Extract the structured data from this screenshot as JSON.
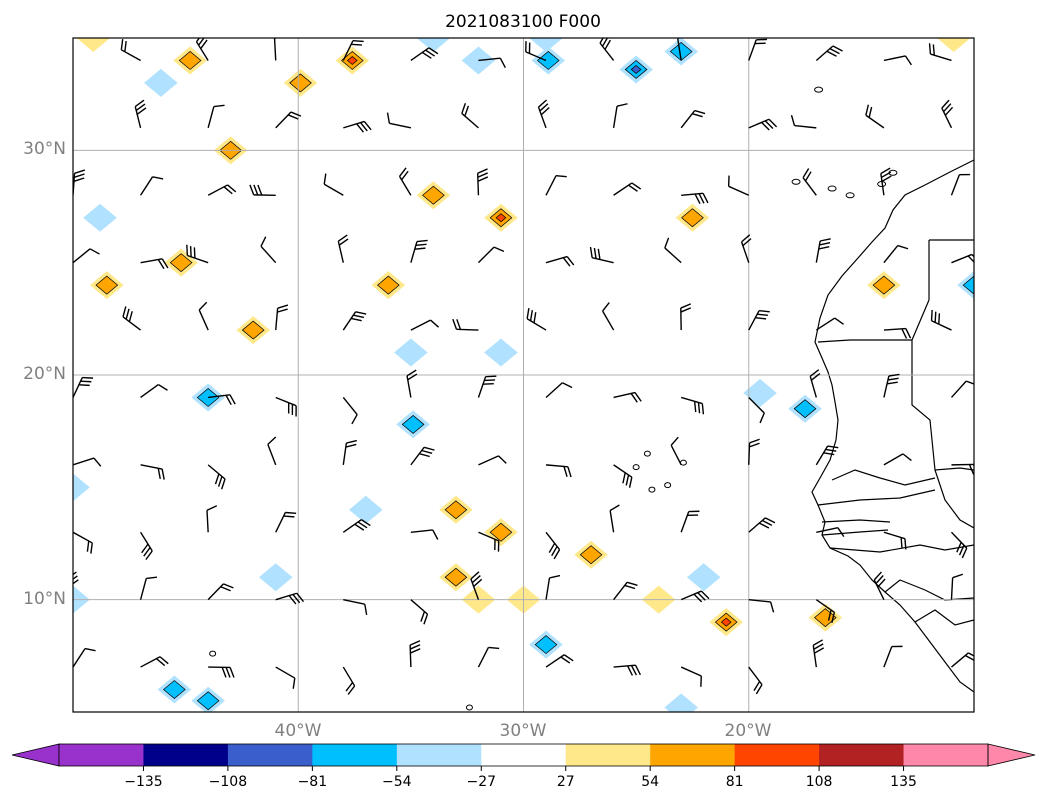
{
  "title": "2021083100 F000",
  "latitude_labels": [
    "30°N",
    "20°N",
    "10°N"
  ],
  "longitude_labels": [
    "40°W",
    "30°W",
    "20°W"
  ],
  "map_extent": {
    "lon_min": -50,
    "lon_max": -10,
    "lat_min": 5,
    "lat_max": 35
  },
  "gridlines": {
    "lat": [
      30,
      20,
      10
    ],
    "lon": [
      -40,
      -30,
      -20
    ],
    "color": "#b0b0b0"
  },
  "colorbar": {
    "ticks": [
      "−135",
      "−108",
      "−81",
      "−54",
      "−27",
      "27",
      "54",
      "81",
      "108",
      "135"
    ],
    "levels": [
      -135,
      -108,
      -81,
      -54,
      -27,
      27,
      54,
      81,
      108,
      135
    ],
    "colors": [
      "#9932cc",
      "#00008b",
      "#3a5fcd",
      "#00bfff",
      "#b0e2ff",
      "#ffffff",
      "#ffe88a",
      "#ffa500",
      "#ff4500",
      "#b22222",
      "#ff88aa"
    ],
    "extend": "both"
  },
  "colors": {
    "pos_light": "#ffe88a",
    "pos_mid": "#ffa500",
    "pos_strong": "#ff4500",
    "neg_light": "#b0e2ff",
    "neg_mid": "#00bfff",
    "neg_strong": "#3a5fcd",
    "neg_extreme": "#9932cc"
  },
  "anomaly_blobs": [
    {
      "lon": -49.1,
      "lat": 35.0,
      "level": 1
    },
    {
      "lon": -44.8,
      "lat": 34.0,
      "level": 2
    },
    {
      "lon": -39.9,
      "lat": 33.0,
      "level": 2
    },
    {
      "lon": -37.6,
      "lat": 34.0,
      "level": 3
    },
    {
      "lon": -43.0,
      "lat": 30.0,
      "level": 2
    },
    {
      "lon": -34.0,
      "lat": 28.0,
      "level": 2
    },
    {
      "lon": -31.0,
      "lat": 27.0,
      "level": 3
    },
    {
      "lon": -45.2,
      "lat": 25.0,
      "level": 2
    },
    {
      "lon": -48.5,
      "lat": 24.0,
      "level": 2
    },
    {
      "lon": -42.0,
      "lat": 22.0,
      "level": 2
    },
    {
      "lon": -36.0,
      "lat": 24.0,
      "level": 2
    },
    {
      "lon": -22.5,
      "lat": 27.0,
      "level": 2
    },
    {
      "lon": -14.0,
      "lat": 24.0,
      "level": 2
    },
    {
      "lon": -33.0,
      "lat": 14.0,
      "level": 2
    },
    {
      "lon": -31.0,
      "lat": 13.0,
      "level": 2
    },
    {
      "lon": -27.0,
      "lat": 12.0,
      "level": 2
    },
    {
      "lon": -33.0,
      "lat": 11.0,
      "level": 2
    },
    {
      "lon": -32.0,
      "lat": 10.0,
      "level": 1
    },
    {
      "lon": -30.0,
      "lat": 10.0,
      "level": 1
    },
    {
      "lon": -24.0,
      "lat": 10.0,
      "level": 1
    },
    {
      "lon": -21.0,
      "lat": 9.0,
      "level": 3
    },
    {
      "lon": -16.6,
      "lat": 9.2,
      "level": 2
    },
    {
      "lon": -10.9,
      "lat": 35.0,
      "level": 1
    },
    {
      "lon": -46.1,
      "lat": 33.0,
      "level": -1
    },
    {
      "lon": -29.0,
      "lat": 35.0,
      "level": -1
    },
    {
      "lon": -32.0,
      "lat": 34.0,
      "level": -1
    },
    {
      "lon": -34.0,
      "lat": 35.0,
      "level": -1
    },
    {
      "lon": -28.9,
      "lat": 34.0,
      "level": -2
    },
    {
      "lon": -25.0,
      "lat": 33.6,
      "level": -3
    },
    {
      "lon": -23.0,
      "lat": 34.4,
      "level": -2
    },
    {
      "lon": -48.8,
      "lat": 27.0,
      "level": -1
    },
    {
      "lon": -35.0,
      "lat": 21.0,
      "level": -1
    },
    {
      "lon": -31.0,
      "lat": 21.0,
      "level": -1
    },
    {
      "lon": -44.0,
      "lat": 19.0,
      "level": -2
    },
    {
      "lon": -34.9,
      "lat": 17.8,
      "level": -2
    },
    {
      "lon": -37.0,
      "lat": 14.0,
      "level": -1
    },
    {
      "lon": -41.0,
      "lat": 11.0,
      "level": -1
    },
    {
      "lon": -50.0,
      "lat": 15.0,
      "level": -1
    },
    {
      "lon": -50.0,
      "lat": 10.0,
      "level": -1
    },
    {
      "lon": -29.0,
      "lat": 8.0,
      "level": -2
    },
    {
      "lon": -22.0,
      "lat": 11.0,
      "level": -1
    },
    {
      "lon": -17.5,
      "lat": 18.5,
      "level": -2
    },
    {
      "lon": -19.5,
      "lat": 19.2,
      "level": -1
    },
    {
      "lon": -10.0,
      "lat": 24.0,
      "level": -2
    },
    {
      "lon": -45.5,
      "lat": 6.0,
      "level": -2
    },
    {
      "lon": -44.0,
      "lat": 5.5,
      "level": -2
    },
    {
      "lon": -23.0,
      "lat": 5.2,
      "level": -1
    }
  ],
  "wind_barb_grid": {
    "lon_start": -50,
    "lon_step": 3,
    "lon_count": 14,
    "lat_start": 34,
    "lat_step": 3,
    "lat_count": 10
  }
}
